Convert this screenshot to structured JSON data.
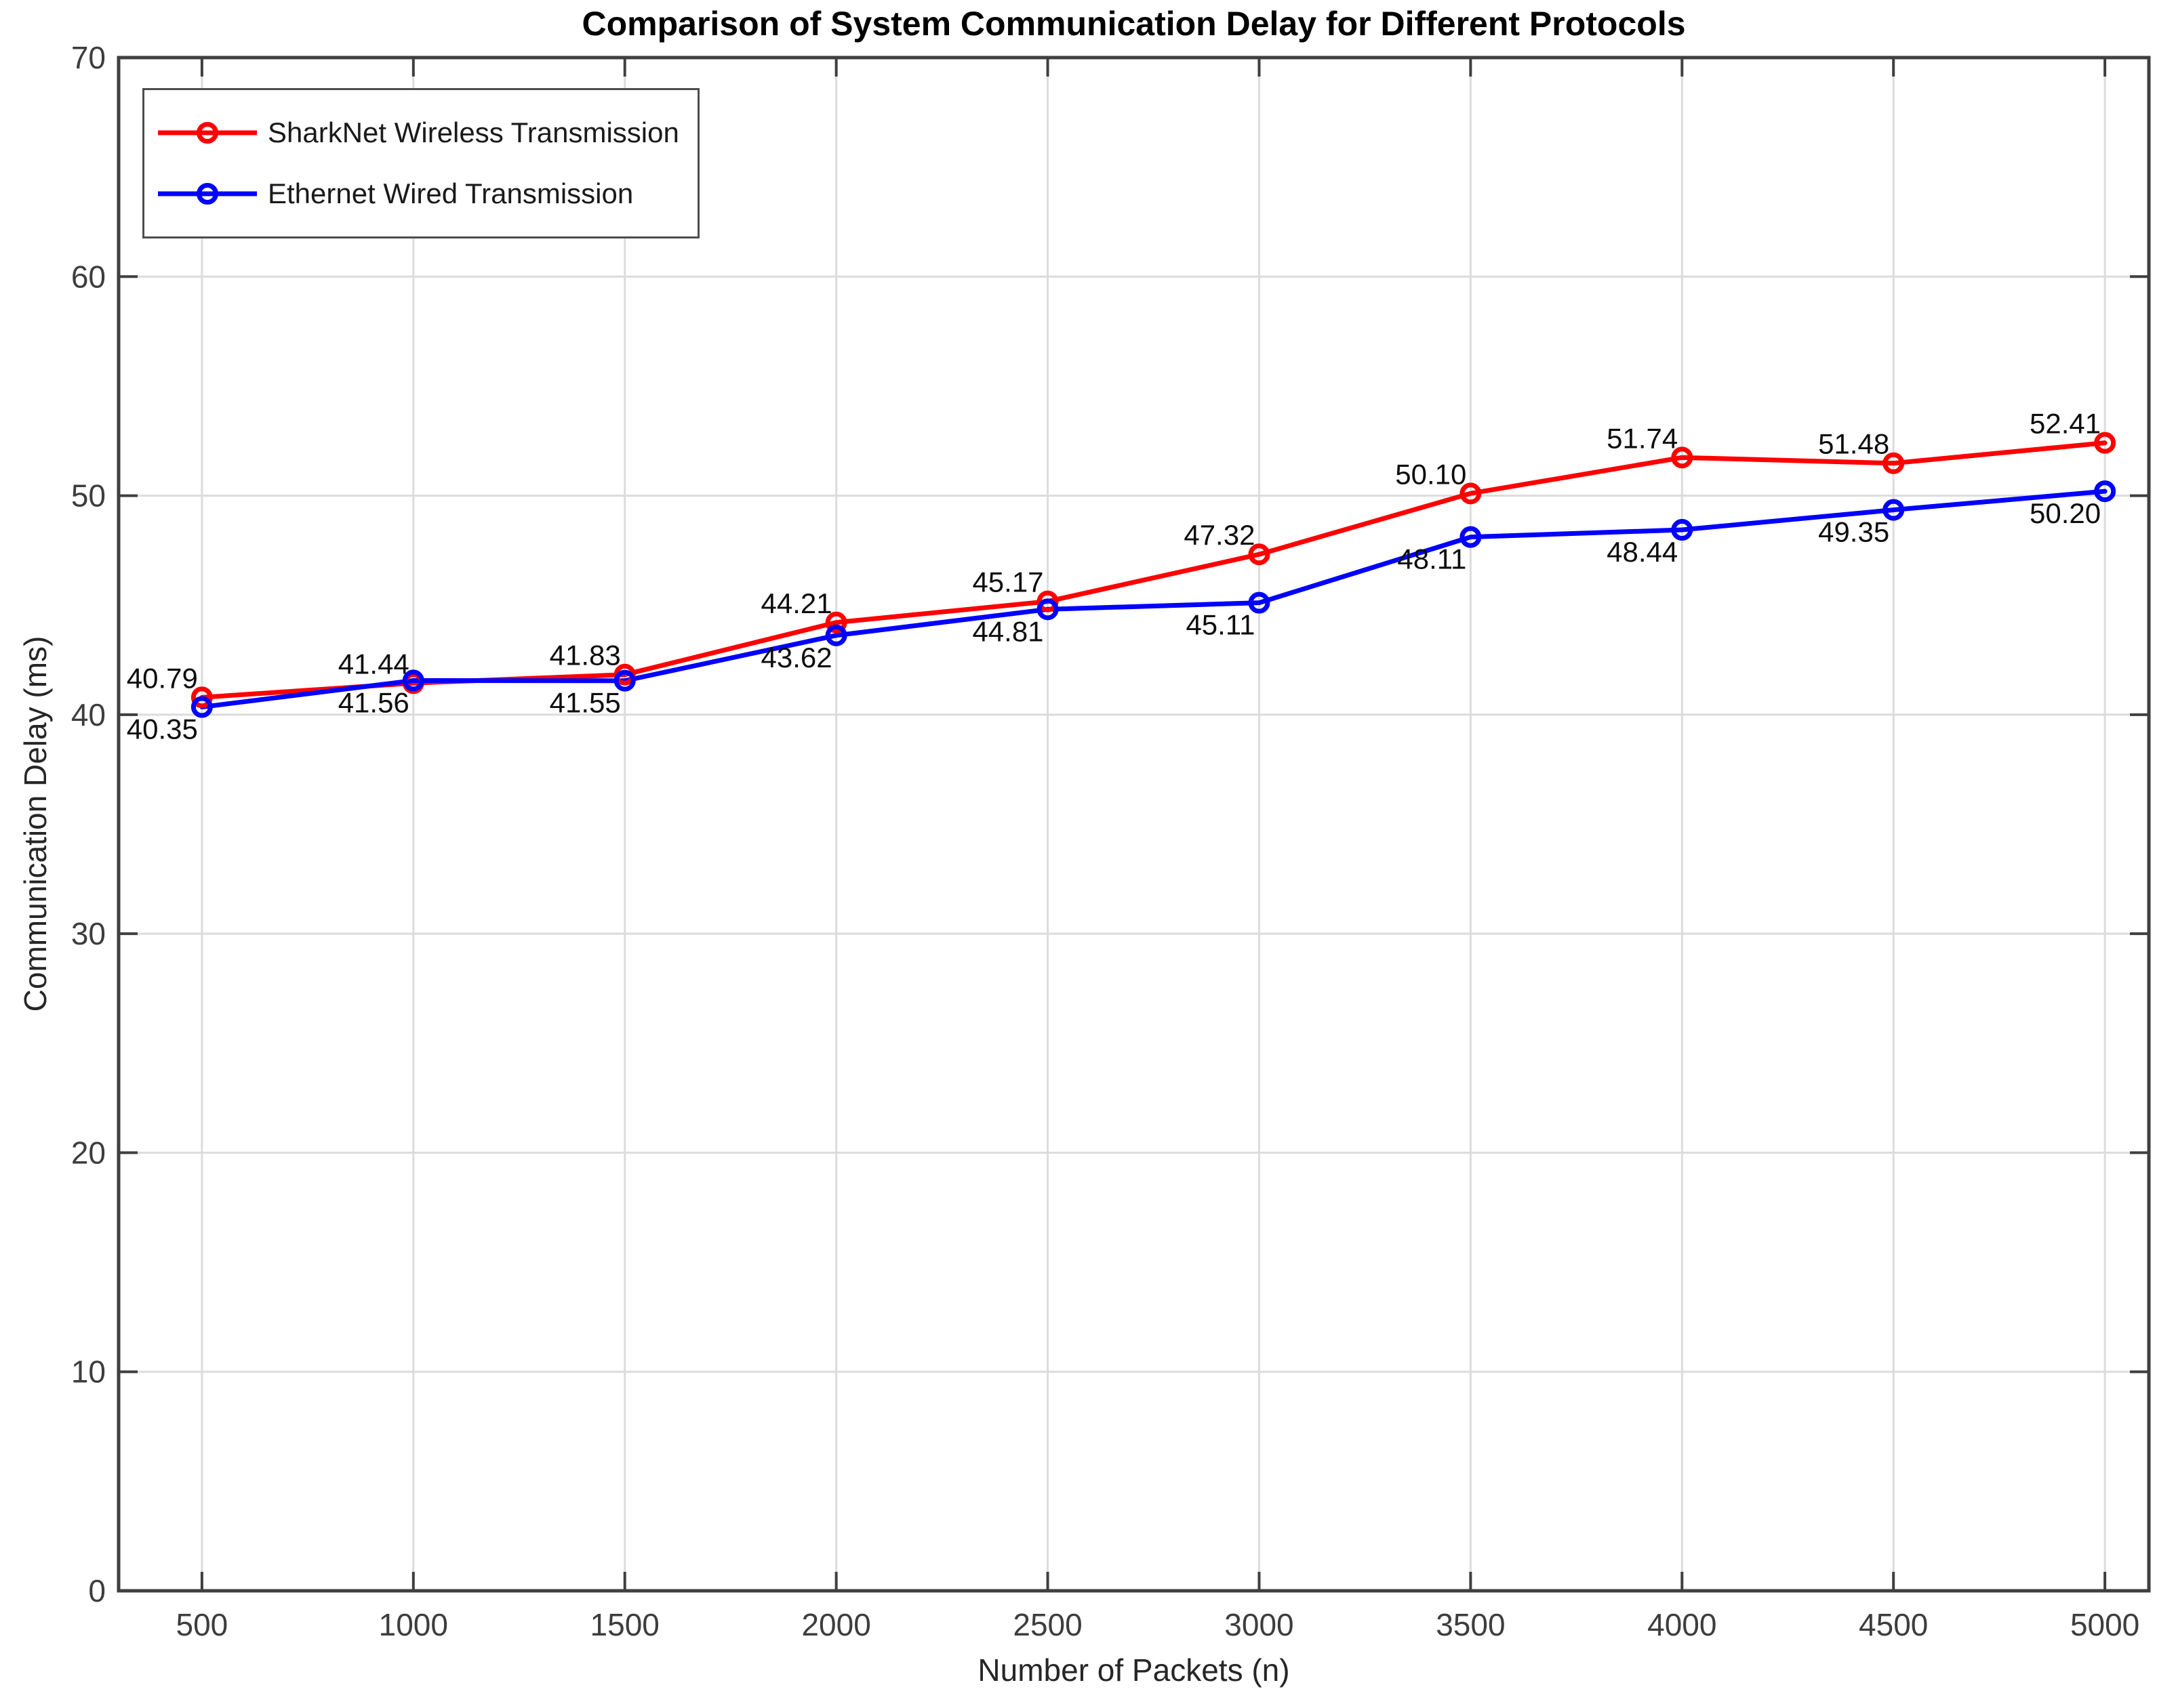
{
  "chart_data": {
    "type": "line",
    "title": "Comparison of System Communication Delay for Different Protocols",
    "xlabel": "Number of Packets (n)",
    "ylabel": "Communication Delay (ms)",
    "x": [
      500,
      1000,
      1500,
      2000,
      2500,
      3000,
      3500,
      4000,
      4500,
      5000
    ],
    "xticks": [
      500,
      1000,
      1500,
      2000,
      2500,
      3000,
      3500,
      4000,
      4500,
      5000
    ],
    "yticks": [
      0,
      10,
      20,
      30,
      40,
      50,
      60,
      70
    ],
    "xlim": [
      303,
      5104
    ],
    "ylim": [
      0,
      70
    ],
    "grid": true,
    "legend_position": "northwest",
    "series": [
      {
        "name": "SharkNet Wireless Transmission",
        "color": "#ff0000",
        "marker": "o",
        "values": [
          40.79,
          41.44,
          41.83,
          44.21,
          45.17,
          47.32,
          50.1,
          51.74,
          51.48,
          52.41
        ],
        "point_labels": [
          "40.79",
          "41.44",
          "41.83",
          "44.21",
          "45.17",
          "47.32",
          "50.10",
          "51.74",
          "51.48",
          "52.41"
        ],
        "label_side": "above"
      },
      {
        "name": "Ethernet Wired Transmission",
        "color": "#0000ff",
        "marker": "o",
        "values": [
          40.35,
          41.56,
          41.55,
          43.62,
          44.81,
          45.11,
          48.11,
          48.44,
          49.35,
          50.2
        ],
        "point_labels": [
          "40.35",
          "41.56",
          "41.55",
          "43.62",
          "44.81",
          "45.11",
          "48.11",
          "48.44",
          "49.35",
          "50.20"
        ],
        "label_side": "below"
      }
    ]
  }
}
